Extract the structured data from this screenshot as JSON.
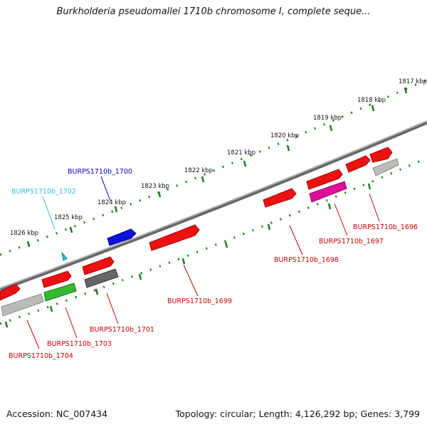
{
  "title": "Burkholderia pseudomallei 1710b chromosome I, complete seque...",
  "footer": {
    "accession": "Accession: NC_007434",
    "summary": "Topology: circular; Length: 4,126,292 bp; Genes: 3,799"
  },
  "ruler": {
    "labels": [
      "1817 kbp",
      "1818 kbp",
      "1819 kbp",
      "1820 kbp",
      "1821 kbp",
      "1822 kbp",
      "1823 kbp",
      "1824 kbp",
      "1825 kbp",
      "1826 kbp"
    ]
  },
  "genes": [
    {
      "id": "BURPS1710b_1696",
      "label": "BURPS1710b_1696",
      "color": "#cc0000"
    },
    {
      "id": "BURPS1710b_1697",
      "label": "BURPS1710b_1697",
      "color": "#cc0000"
    },
    {
      "id": "BURPS1710b_1698",
      "label": "BURPS1710b_1698",
      "color": "#cc0000"
    },
    {
      "id": "BURPS1710b_1699",
      "label": "BURPS1710b_1699",
      "color": "#cc0000"
    },
    {
      "id": "BURPS1710b_1700",
      "label": "BURPS1710b_1700",
      "color": "#0000cc"
    },
    {
      "id": "BURPS1710b_1701",
      "label": "BURPS1710b_1701",
      "color": "#cc0000"
    },
    {
      "id": "BURPS1710b_1702",
      "label": "BURPS1710b_1702",
      "color": "#33bbdd"
    },
    {
      "id": "BURPS1710b_1703",
      "label": "BURPS1710b_1703",
      "color": "#cc0000"
    },
    {
      "id": "BURPS1710b_1704",
      "label": "BURPS1710b_1704",
      "color": "#cc0000"
    }
  ],
  "colors": {
    "forward": "#ee1111",
    "forward_dark": "#aa0000",
    "cds_blue": "#1111dd",
    "cds_magenta": "#dd1199",
    "cds_green": "#33bb33",
    "cds_gray": "#666666",
    "cds_lightgray": "#bbbbbb",
    "backbone": "#888888",
    "ruler": "#1a7a1a"
  }
}
